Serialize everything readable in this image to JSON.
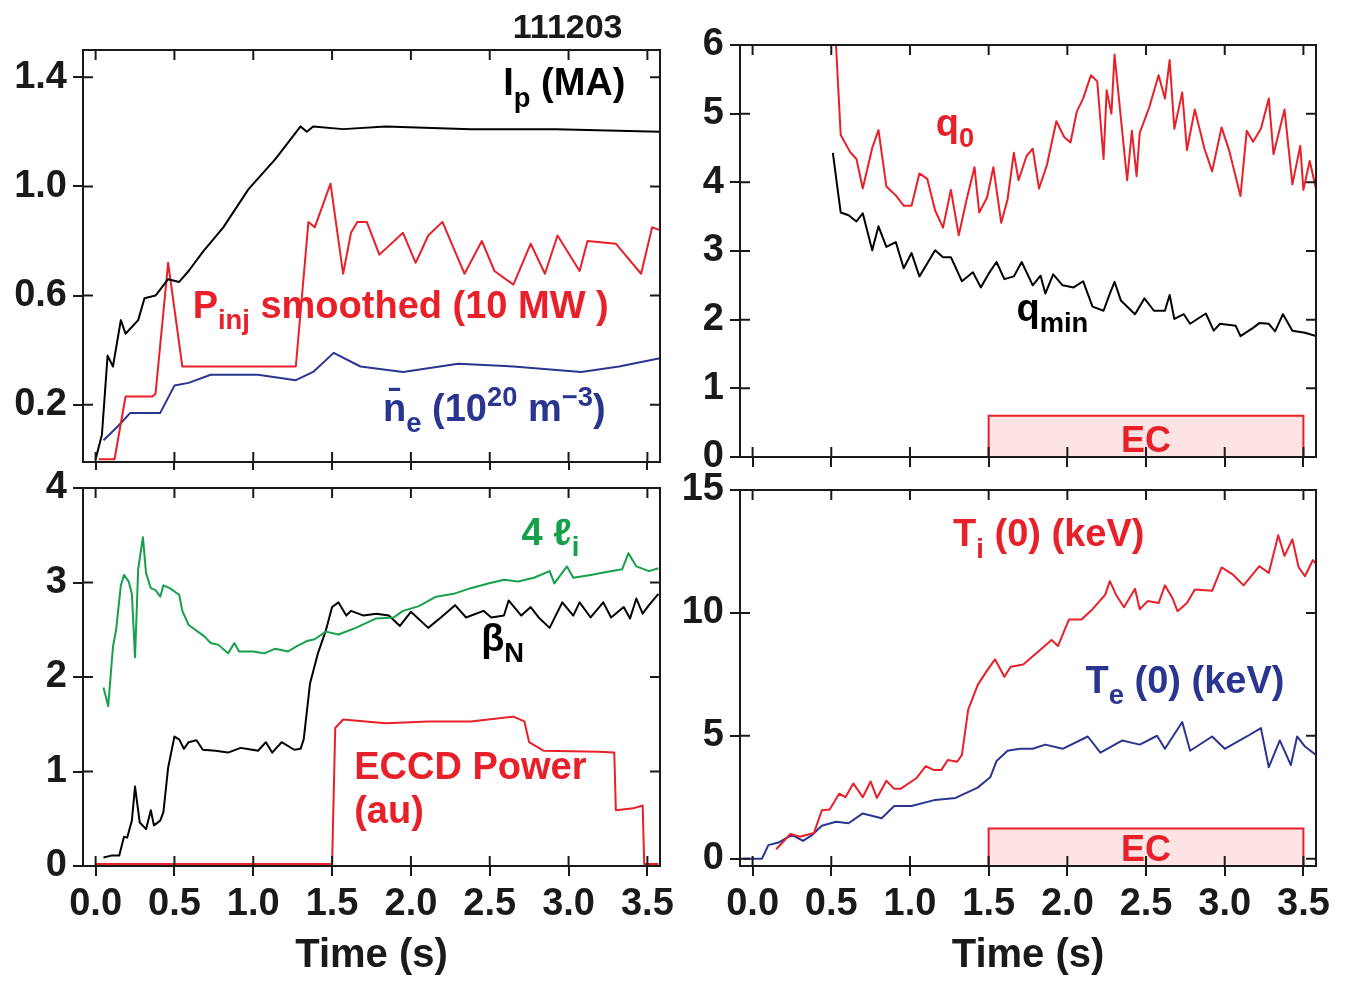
{
  "chart_data": [
    {
      "type": "line",
      "title": "111203",
      "xlim": [
        -0.08,
        3.58
      ],
      "xticks": [
        {
          "value": 0,
          "label": null
        },
        {
          "value": 0.5,
          "label": null
        },
        {
          "value": 1,
          "label": null
        },
        {
          "value": 1.5,
          "label": null
        },
        {
          "value": 2,
          "label": null
        },
        {
          "value": 2.5,
          "label": null
        },
        {
          "value": 3,
          "label": null
        },
        {
          "value": 3.5,
          "label": null
        }
      ],
      "ylim": [
        -0.01,
        1.5
      ],
      "yticks": [
        0.2,
        0.6,
        {
          "value": 1,
          "label": "1.0"
        },
        1.4
      ],
      "tick_labels": "y",
      "series": [
        {
          "name": "I$_{p}$ (MA)",
          "color": "#000000",
          "x": [
            0,
            0.04,
            0.076,
            0.11,
            0.16,
            0.19,
            0.27,
            0.31,
            0.38,
            0.46,
            0.53,
            0.59,
            0.68,
            0.81,
            0.97,
            1.14,
            1.3,
            1.34,
            1.38,
            1.57,
            1.84,
            2.38,
            2.92,
            3.58
          ],
          "values": [
            0,
            0.09,
            0.38,
            0.34,
            0.51,
            0.46,
            0.51,
            0.59,
            0.6,
            0.66,
            0.65,
            0.69,
            0.76,
            0.85,
            0.99,
            1.1,
            1.22,
            1.2,
            1.22,
            1.21,
            1.22,
            1.21,
            1.21,
            1.2
          ]
        },
        {
          "name": "P$_{inj}$ smoothed (10 MW )",
          "color": "#e8202a",
          "x": [
            0.02,
            0.12,
            0.19,
            0.36,
            0.38,
            0.46,
            0.55,
            1.27,
            1.35,
            1.39,
            1.49,
            1.57,
            1.62,
            1.66,
            1.72,
            1.8,
            1.95,
            2.03,
            2.11,
            2.2,
            2.34,
            2.45,
            2.53,
            2.65,
            2.76,
            2.85,
            2.93,
            3.07,
            3.12,
            3.3,
            3.46,
            3.53,
            3.58
          ],
          "values": [
            0,
            0,
            0.23,
            0.23,
            0.24,
            0.72,
            0.34,
            0.34,
            0.87,
            0.85,
            1.01,
            0.68,
            0.83,
            0.87,
            0.87,
            0.75,
            0.83,
            0.72,
            0.82,
            0.87,
            0.68,
            0.8,
            0.69,
            0.64,
            0.79,
            0.68,
            0.82,
            0.69,
            0.8,
            0.79,
            0.68,
            0.85,
            0.84
          ]
        },
        {
          "name": "n̄$_{e}$ (10$^{20}$ m$^{−3}$)",
          "color": "#2a3590",
          "x": [
            0.05,
            0.14,
            0.22,
            0.41,
            0.5,
            0.59,
            0.73,
            1.03,
            1.27,
            1.38,
            1.51,
            1.68,
            1.95,
            2.3,
            2.65,
            3.08,
            3.32,
            3.58
          ],
          "values": [
            0.07,
            0.12,
            0.17,
            0.17,
            0.27,
            0.28,
            0.31,
            0.31,
            0.29,
            0.32,
            0.39,
            0.34,
            0.32,
            0.35,
            0.34,
            0.32,
            0.34,
            0.37
          ]
        }
      ]
    },
    {
      "type": "line",
      "xlim": [
        -0.08,
        3.58
      ],
      "xticks": [
        {
          "value": 0,
          "label": null
        },
        {
          "value": 0.5,
          "label": null
        },
        {
          "value": 1,
          "label": null
        },
        {
          "value": 1.5,
          "label": null
        },
        {
          "value": 2,
          "label": null
        },
        {
          "value": 2.5,
          "label": null
        },
        {
          "value": 3,
          "label": null
        },
        {
          "value": 3.5,
          "label": null
        }
      ],
      "ylim": [
        0,
        6
      ],
      "yticks": [
        0,
        1,
        2,
        3,
        4,
        5,
        6
      ],
      "tick_labels": "y",
      "bands": [
        {
          "axis": "x",
          "from": 1.5,
          "to": 3.5,
          "label": "EC",
          "color": "#e8202a"
        }
      ],
      "series": [
        {
          "name": "q$_{0}$",
          "color": "#e8202a",
          "x": [
            0.53,
            0.56,
            0.62,
            0.66,
            0.7,
            0.76,
            0.8,
            0.85,
            0.91,
            0.96,
            1.01,
            1.06,
            1.11,
            1.16,
            1.21,
            1.26,
            1.31,
            1.36,
            1.41,
            1.44,
            1.49,
            1.53,
            1.58,
            1.62,
            1.66,
            1.69,
            1.74,
            1.78,
            1.82,
            1.87,
            1.93,
            1.98,
            2.02,
            2.06,
            2.1,
            2.15,
            2.19,
            2.23,
            2.25,
            2.28,
            2.3,
            2.34,
            2.38,
            2.41,
            2.44,
            2.46,
            2.52,
            2.58,
            2.62,
            2.65,
            2.68,
            2.73,
            2.76,
            2.81,
            2.87,
            2.92,
            2.98,
            3.03,
            3.1,
            3.14,
            3.18,
            3.23,
            3.28,
            3.31,
            3.38,
            3.43,
            3.48,
            3.5,
            3.54,
            3.58
          ],
          "values": [
            6,
            4.69,
            4.44,
            4.34,
            3.91,
            4.5,
            4.76,
            3.94,
            3.81,
            3.66,
            3.66,
            4.13,
            4.05,
            3.59,
            3.34,
            3.89,
            3.23,
            3.75,
            4.22,
            3.56,
            3.78,
            4.22,
            3.41,
            3.75,
            4.43,
            4.03,
            4.38,
            4.49,
            3.91,
            4.25,
            4.89,
            4.66,
            4.58,
            5.03,
            5.22,
            5.56,
            5.47,
            4.34,
            5.34,
            5,
            5.86,
            4.94,
            4.03,
            4.75,
            4.09,
            4.72,
            5.09,
            5.56,
            5.22,
            5.78,
            4.78,
            5.31,
            4.47,
            5.06,
            4.5,
            4.16,
            4.8,
            4.45,
            3.8,
            4.75,
            4.59,
            4.78,
            5.22,
            4.41,
            5.06,
            3.97,
            4.53,
            3.89,
            4.31,
            3.91
          ]
        },
        {
          "name": "q$_{min}$",
          "color": "#000000",
          "x": [
            0.51,
            0.56,
            0.61,
            0.66,
            0.7,
            0.76,
            0.8,
            0.85,
            0.91,
            0.96,
            1.01,
            1.06,
            1.16,
            1.21,
            1.26,
            1.33,
            1.4,
            1.45,
            1.5,
            1.55,
            1.6,
            1.66,
            1.71,
            1.78,
            1.83,
            1.86,
            1.91,
            1.97,
            2.04,
            2.1,
            2.16,
            2.23,
            2.27,
            2.3,
            2.34,
            2.43,
            2.49,
            2.55,
            2.62,
            2.65,
            2.68,
            2.74,
            2.78,
            2.88,
            2.93,
            2.97,
            3.07,
            3.1,
            3.18,
            3.22,
            3.28,
            3.32,
            3.37,
            3.43,
            3.51,
            3.58
          ],
          "values": [
            4.43,
            3.56,
            3.52,
            3.43,
            3.55,
            3.01,
            3.36,
            3.06,
            3.13,
            2.75,
            2.97,
            2.63,
            3.01,
            2.91,
            2.91,
            2.56,
            2.69,
            2.47,
            2.67,
            2.84,
            2.59,
            2.63,
            2.84,
            2.5,
            2.64,
            2.38,
            2.66,
            2.5,
            2.47,
            2.56,
            2.19,
            2.13,
            2.38,
            2.55,
            2.28,
            2.08,
            2.31,
            2.13,
            2.13,
            2.36,
            2.01,
            2.08,
            1.94,
            2.09,
            1.84,
            1.94,
            1.91,
            1.76,
            1.88,
            1.95,
            1.94,
            1.83,
            2.08,
            1.84,
            1.81,
            1.76
          ]
        }
      ]
    },
    {
      "type": "line",
      "xlabel": "Time (s)",
      "xlim": [
        -0.08,
        3.58
      ],
      "xticks": [
        {
          "value": 0,
          "label": "0.0"
        },
        0.5,
        {
          "value": 1,
          "label": "1.0"
        },
        1.5,
        {
          "value": 2,
          "label": "2.0"
        },
        2.5,
        {
          "value": 3,
          "label": "3.0"
        },
        3.5
      ],
      "ylim": [
        0,
        4
      ],
      "yticks": [
        0,
        1,
        2,
        3,
        4
      ],
      "series": [
        {
          "name": "4 ℓ$_{i}$",
          "color": "#16a04a",
          "x": [
            0.05,
            0.08,
            0.11,
            0.13,
            0.16,
            0.18,
            0.21,
            0.23,
            0.25,
            0.27,
            0.3,
            0.32,
            0.35,
            0.38,
            0.41,
            0.43,
            0.47,
            0.53,
            0.55,
            0.59,
            0.69,
            0.73,
            0.78,
            0.84,
            0.88,
            0.91,
            1,
            1.07,
            1.14,
            1.22,
            1.28,
            1.34,
            1.39,
            1.46,
            1.54,
            1.65,
            1.78,
            1.89,
            1.95,
            2.05,
            2.16,
            2.27,
            2.38,
            2.49,
            2.59,
            2.68,
            2.78,
            2.88,
            2.91,
            2.99,
            3.03,
            3.14,
            3.24,
            3.34,
            3.38,
            3.43,
            3.51,
            3.57
          ],
          "values": [
            1.89,
            1.69,
            2.32,
            2.5,
            2.97,
            3.08,
            3.01,
            2.88,
            2.21,
            3.14,
            3.48,
            3.1,
            2.94,
            2.92,
            2.85,
            2.97,
            2.94,
            2.87,
            2.7,
            2.55,
            2.43,
            2.36,
            2.34,
            2.25,
            2.36,
            2.27,
            2.27,
            2.25,
            2.3,
            2.27,
            2.33,
            2.38,
            2.4,
            2.48,
            2.45,
            2.52,
            2.62,
            2.63,
            2.7,
            2.75,
            2.85,
            2.88,
            2.94,
            2.99,
            3.03,
            3.01,
            3.05,
            3.12,
            2.99,
            3.17,
            3.05,
            3.08,
            3.11,
            3.14,
            3.31,
            3.17,
            3.12,
            3.15
          ]
        },
        {
          "name": "β$_{N}$",
          "color": "#000000",
          "x": [
            0.05,
            0.1,
            0.15,
            0.18,
            0.2,
            0.23,
            0.25,
            0.28,
            0.32,
            0.35,
            0.37,
            0.41,
            0.43,
            0.46,
            0.5,
            0.53,
            0.56,
            0.59,
            0.64,
            0.68,
            0.76,
            0.84,
            0.92,
            1.03,
            1.08,
            1.12,
            1.18,
            1.26,
            1.3,
            1.32,
            1.36,
            1.41,
            1.46,
            1.5,
            1.54,
            1.59,
            1.62,
            1.7,
            1.78,
            1.86,
            1.93,
            2,
            2.11,
            2.19,
            2.28,
            2.35,
            2.46,
            2.51,
            2.59,
            2.62,
            2.7,
            2.76,
            2.81,
            2.88,
            2.96,
            3.03,
            3.07,
            3.14,
            3.22,
            3.27,
            3.35,
            3.39,
            3.43,
            3.47,
            3.51,
            3.57
          ],
          "values": [
            0.09,
            0.11,
            0.11,
            0.31,
            0.3,
            0.48,
            0.84,
            0.46,
            0.39,
            0.59,
            0.43,
            0.48,
            0.57,
            1.04,
            1.37,
            1.34,
            1.24,
            1.31,
            1.33,
            1.23,
            1.22,
            1.2,
            1.25,
            1.22,
            1.31,
            1.2,
            1.31,
            1.23,
            1.24,
            1.34,
            1.93,
            2.25,
            2.49,
            2.74,
            2.79,
            2.65,
            2.7,
            2.65,
            2.67,
            2.65,
            2.54,
            2.69,
            2.52,
            2.63,
            2.76,
            2.63,
            2.7,
            2.63,
            2.65,
            2.81,
            2.65,
            2.74,
            2.63,
            2.52,
            2.79,
            2.65,
            2.79,
            2.63,
            2.79,
            2.63,
            2.74,
            2.62,
            2.83,
            2.67,
            2.76,
            2.88
          ]
        },
        {
          "name": "ECCD Power (au)",
          "color": "#e8202a",
          "x": [
            0,
            1.5,
            1.52,
            1.57,
            1.84,
            2.11,
            2.38,
            2.65,
            2.72,
            2.75,
            2.84,
            3.19,
            3.29,
            3.3,
            3.41,
            3.47,
            3.48,
            3.57
          ],
          "values": [
            0.02,
            0.02,
            1.46,
            1.55,
            1.51,
            1.53,
            1.53,
            1.58,
            1.53,
            1.31,
            1.22,
            1.21,
            1.2,
            0.59,
            0.61,
            0.64,
            0.02,
            0.02
          ]
        }
      ]
    },
    {
      "type": "line",
      "xlabel": "Time (s)",
      "xlim": [
        -0.08,
        3.58
      ],
      "xticks": [
        {
          "value": 0,
          "label": "0.0"
        },
        0.5,
        {
          "value": 1,
          "label": "1.0"
        },
        1.5,
        {
          "value": 2,
          "label": "2.0"
        },
        2.5,
        {
          "value": 3,
          "label": "3.0"
        },
        3.5
      ],
      "ylim": [
        -0.3,
        15
      ],
      "yticks": [
        0,
        5,
        10,
        15
      ],
      "bands": [
        {
          "axis": "x",
          "from": 1.5,
          "to": 3.5,
          "label": "EC",
          "color": "#e8202a"
        }
      ],
      "series": [
        {
          "name": "T$_{i}$ (0) (keV)",
          "color": "#e8202a",
          "x": [
            0.15,
            0.24,
            0.3,
            0.39,
            0.44,
            0.49,
            0.55,
            0.59,
            0.64,
            0.7,
            0.75,
            0.79,
            0.85,
            0.9,
            0.94,
            1.04,
            1.1,
            1.15,
            1.2,
            1.24,
            1.3,
            1.33,
            1.37,
            1.43,
            1.48,
            1.54,
            1.6,
            1.64,
            1.72,
            1.81,
            1.9,
            1.94,
            2.01,
            2.09,
            2.16,
            2.24,
            2.27,
            2.31,
            2.36,
            2.43,
            2.46,
            2.51,
            2.58,
            2.62,
            2.67,
            2.7,
            2.76,
            2.81,
            2.92,
            2.98,
            3.05,
            3.12,
            3.22,
            3.28,
            3.34,
            3.38,
            3.43,
            3.47,
            3.51,
            3.56,
            3.58
          ],
          "values": [
            0.38,
            1,
            0.89,
            1.04,
            1.97,
            2,
            2.64,
            2.5,
            3.06,
            2.5,
            3.14,
            2.47,
            3.17,
            2.84,
            2.84,
            3.27,
            3.76,
            3.61,
            3.61,
            4.01,
            3.94,
            4.22,
            6.06,
            7.06,
            7.56,
            8.11,
            7.4,
            7.81,
            7.9,
            8.4,
            8.9,
            8.65,
            9.73,
            9.73,
            10.15,
            10.73,
            11.29,
            10.73,
            10.23,
            10.98,
            10.15,
            10.48,
            10.4,
            11.12,
            10.57,
            10.07,
            10.4,
            10.95,
            10.9,
            11.85,
            11.57,
            11.12,
            11.9,
            11.62,
            13.16,
            12.32,
            12.99,
            11.85,
            11.49,
            12.15,
            11.99
          ]
        },
        {
          "name": "T$_{e}$ (0) (keV)",
          "color": "#2a3590",
          "x": [
            -0.06,
            0.06,
            0.1,
            0.17,
            0.25,
            0.32,
            0.38,
            0.44,
            0.53,
            0.61,
            0.7,
            0.82,
            0.9,
            1.01,
            1.16,
            1.29,
            1.43,
            1.51,
            1.55,
            1.62,
            1.7,
            1.78,
            1.86,
            1.97,
            2.13,
            2.21,
            2.35,
            2.46,
            2.57,
            2.62,
            2.73,
            2.78,
            2.92,
            3,
            3.14,
            3.23,
            3.28,
            3.35,
            3.42,
            3.46,
            3.51,
            3.58
          ],
          "values": [
            0,
            0,
            0.55,
            0.67,
            0.97,
            0.72,
            0.97,
            1.34,
            1.5,
            1.44,
            1.84,
            1.64,
            2.14,
            2.14,
            2.39,
            2.47,
            2.89,
            3.31,
            3.97,
            4.39,
            4.47,
            4.47,
            4.64,
            4.47,
            4.97,
            4.31,
            4.81,
            4.64,
            5,
            4.47,
            5.56,
            4.39,
            4.97,
            4.47,
            4.97,
            5.31,
            3.72,
            4.81,
            3.81,
            4.97,
            4.56,
            4.22
          ]
        }
      ]
    }
  ]
}
